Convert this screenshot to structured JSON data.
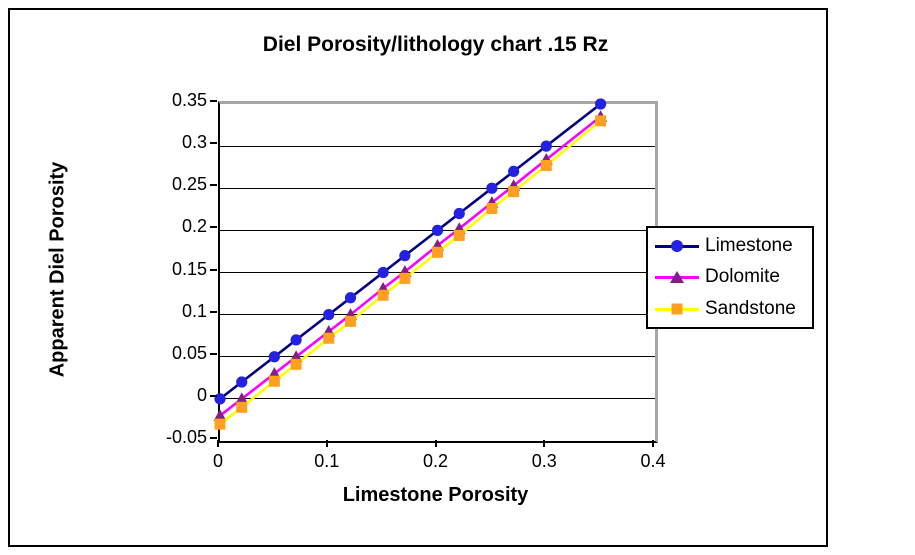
{
  "window": {
    "background_color": "#ffffff",
    "chart_border_color": "#000000",
    "plot_frame_gray": "#a6a6a6"
  },
  "chart_data": {
    "type": "line",
    "title": "Diel Porosity/lithology chart .15 Rz",
    "xlabel": "Limestone Porosity",
    "ylabel": "Apparent Diel Porosity",
    "xlim": [
      0,
      0.4
    ],
    "ylim": [
      -0.05,
      0.35
    ],
    "x_ticks": [
      0,
      0.1,
      0.2,
      0.3,
      0.4
    ],
    "x_tick_labels": [
      "0",
      "0.1",
      "0.2",
      "0.3",
      "0.4"
    ],
    "y_ticks": [
      0.35,
      0.3,
      0.25,
      0.2,
      0.15,
      0.1,
      0.05,
      0,
      -0.05
    ],
    "y_tick_labels": [
      "0.35",
      "0.3",
      "0.25",
      "0.2",
      "0.15",
      "0.1",
      "0.05",
      "0",
      "-0.05"
    ],
    "grid": "horizontal",
    "legend_position": "right",
    "x": [
      0,
      0.02,
      0.05,
      0.07,
      0.1,
      0.12,
      0.15,
      0.17,
      0.2,
      0.22,
      0.25,
      0.27,
      0.3,
      0.35
    ],
    "series": [
      {
        "name": "Limestone",
        "marker": "circle",
        "line_color": "#000080",
        "marker_color": "#2222e0",
        "values": [
          0,
          0.02,
          0.05,
          0.07,
          0.1,
          0.12,
          0.15,
          0.17,
          0.2,
          0.22,
          0.25,
          0.27,
          0.3,
          0.35
        ]
      },
      {
        "name": "Dolomite",
        "marker": "triangle",
        "line_color": "#ff00ff",
        "marker_color": "#802080",
        "values": [
          -0.02,
          0,
          0.03,
          0.05,
          0.08,
          0.1,
          0.131,
          0.151,
          0.182,
          0.202,
          0.233,
          0.253,
          0.284,
          0.335
        ]
      },
      {
        "name": "Sandstone",
        "marker": "square",
        "line_color": "#ffff00",
        "marker_color": "#ffa020",
        "values": [
          -0.03,
          -0.01,
          0.021,
          0.041,
          0.072,
          0.092,
          0.123,
          0.143,
          0.174,
          0.194,
          0.226,
          0.246,
          0.277,
          0.33
        ]
      }
    ]
  }
}
